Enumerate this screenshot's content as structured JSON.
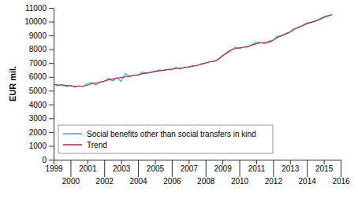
{
  "chart_data": {
    "type": "line",
    "y_label": "EUR mil.",
    "x": [
      1999,
      1999.25,
      1999.5,
      1999.75,
      2000,
      2000.25,
      2000.5,
      2000.75,
      2001,
      2001.25,
      2001.5,
      2001.75,
      2002,
      2002.25,
      2002.5,
      2002.75,
      2003,
      2003.25,
      2003.5,
      2003.75,
      2004,
      2004.25,
      2004.5,
      2004.75,
      2005,
      2005.25,
      2005.5,
      2005.75,
      2006,
      2006.25,
      2006.5,
      2006.75,
      2007,
      2007.25,
      2007.5,
      2007.75,
      2008,
      2008.25,
      2008.5,
      2008.75,
      2009,
      2009.25,
      2009.5,
      2009.75,
      2010,
      2010.25,
      2010.5,
      2010.75,
      2011,
      2011.25,
      2011.5,
      2011.75,
      2012,
      2012.25,
      2012.5,
      2012.75,
      2013,
      2013.25,
      2013.5,
      2013.75,
      2014,
      2014.25,
      2014.5,
      2014.75,
      2015,
      2015.25,
      2015.5
    ],
    "series": [
      {
        "name": "Social benefits other than social transfers in kind",
        "color": "#3aa8c8",
        "values": [
          5500,
          5350,
          5450,
          5300,
          5400,
          5250,
          5350,
          5300,
          5500,
          5600,
          5400,
          5650,
          5650,
          5900,
          5700,
          5950,
          5650,
          6250,
          6000,
          6150,
          6100,
          6350,
          6250,
          6350,
          6400,
          6500,
          6450,
          6550,
          6500,
          6700,
          6550,
          6700,
          6700,
          6800,
          6800,
          6950,
          7000,
          7100,
          7100,
          7300,
          7550,
          7700,
          7900,
          8150,
          8050,
          8150,
          8150,
          8350,
          8500,
          8500,
          8400,
          8600,
          8650,
          8950,
          8950,
          9150,
          9250,
          9500,
          9550,
          9750,
          9900,
          9950,
          10000,
          10200,
          10350,
          10450,
          10500
        ]
      },
      {
        "name": "Trend",
        "color": "#b5294e",
        "values": [
          5450,
          5420,
          5400,
          5380,
          5350,
          5330,
          5320,
          5330,
          5400,
          5500,
          5550,
          5600,
          5700,
          5780,
          5850,
          5900,
          5950,
          6000,
          6050,
          6100,
          6150,
          6220,
          6280,
          6320,
          6380,
          6430,
          6480,
          6520,
          6560,
          6600,
          6640,
          6680,
          6720,
          6780,
          6840,
          6920,
          7000,
          7080,
          7150,
          7250,
          7500,
          7750,
          7950,
          8050,
          8100,
          8150,
          8200,
          8300,
          8400,
          8450,
          8480,
          8500,
          8650,
          8850,
          9000,
          9100,
          9250,
          9450,
          9600,
          9700,
          9850,
          9950,
          10050,
          10150,
          10300,
          10400,
          10500
        ]
      }
    ],
    "xlim": [
      1999,
      2016
    ],
    "xticks": [
      1999,
      2000,
      2001,
      2002,
      2003,
      2004,
      2005,
      2006,
      2007,
      2008,
      2009,
      2010,
      2011,
      2012,
      2013,
      2014,
      2015,
      2016
    ],
    "ylim": [
      0,
      11000
    ],
    "yticks": [
      0,
      1000,
      2000,
      3000,
      4000,
      5000,
      6000,
      7000,
      8000,
      9000,
      10000,
      11000
    ],
    "grid": false,
    "legend": "lower left"
  }
}
